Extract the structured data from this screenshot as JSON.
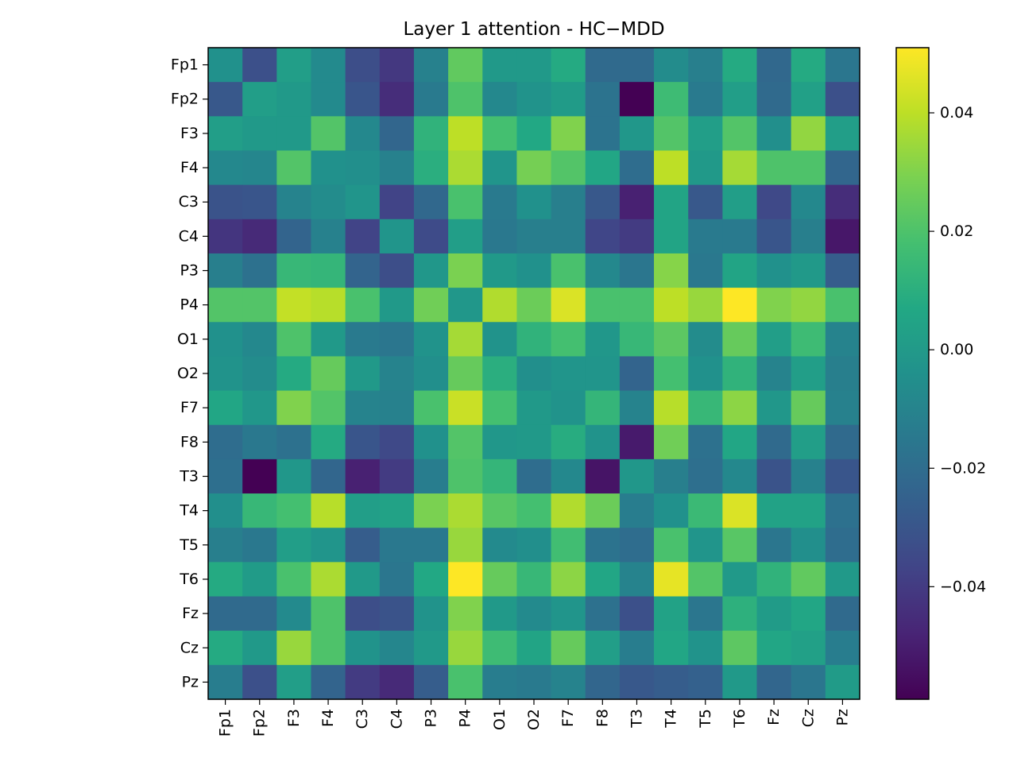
{
  "chart_data": {
    "type": "heatmap",
    "title": "Layer 1 attention - HC−MDD",
    "xlabel": "",
    "ylabel": "",
    "channels": [
      "Fp1",
      "Fp2",
      "F3",
      "F4",
      "C3",
      "C4",
      "P3",
      "P4",
      "O1",
      "O2",
      "F7",
      "F8",
      "T3",
      "T4",
      "T5",
      "T6",
      "Fz",
      "Cz",
      "Pz"
    ],
    "colormap": "viridis",
    "vmin": -0.059,
    "vmax": 0.051,
    "colorbar": {
      "ticks": [
        0.04,
        0.02,
        0.0,
        -0.02,
        -0.04
      ],
      "tick_labels": [
        "0.04",
        "0.02",
        "0.00",
        "−0.02",
        "−0.04"
      ]
    },
    "grid": false,
    "values": [
      [
        -0.004,
        -0.032,
        0.002,
        -0.007,
        -0.033,
        -0.041,
        -0.011,
        0.024,
        0.0,
        0.0,
        0.008,
        -0.021,
        -0.021,
        -0.006,
        -0.012,
        0.008,
        -0.022,
        0.008,
        -0.016
      ],
      [
        -0.029,
        0.002,
        0.0,
        -0.007,
        -0.03,
        -0.045,
        -0.014,
        0.02,
        -0.008,
        -0.003,
        0.001,
        -0.017,
        -0.059,
        0.016,
        -0.014,
        0.002,
        -0.021,
        0.003,
        -0.032
      ],
      [
        0.002,
        0.0,
        0.0,
        0.021,
        -0.008,
        -0.023,
        0.012,
        0.04,
        0.018,
        0.007,
        0.03,
        -0.017,
        -0.001,
        0.021,
        0.002,
        0.021,
        -0.005,
        0.033,
        0.002
      ],
      [
        -0.008,
        -0.009,
        0.021,
        -0.004,
        -0.005,
        -0.011,
        0.01,
        0.037,
        -0.002,
        0.028,
        0.021,
        0.006,
        -0.02,
        0.04,
        0.0,
        0.036,
        0.02,
        0.02,
        -0.023
      ],
      [
        -0.031,
        -0.03,
        -0.01,
        -0.006,
        -0.002,
        -0.037,
        -0.022,
        0.019,
        -0.014,
        -0.004,
        -0.012,
        -0.029,
        -0.049,
        0.005,
        -0.029,
        0.002,
        -0.035,
        -0.008,
        -0.045
      ],
      [
        -0.042,
        -0.046,
        -0.024,
        -0.011,
        -0.037,
        -0.002,
        -0.034,
        0.002,
        -0.015,
        -0.012,
        -0.012,
        -0.036,
        -0.04,
        0.005,
        -0.014,
        -0.014,
        -0.03,
        -0.012,
        -0.052
      ],
      [
        -0.012,
        -0.018,
        0.014,
        0.013,
        -0.024,
        -0.033,
        -0.001,
        0.029,
        0.0,
        -0.004,
        0.019,
        -0.008,
        -0.016,
        0.031,
        -0.015,
        0.005,
        -0.004,
        0.0,
        -0.027
      ],
      [
        0.021,
        0.021,
        0.041,
        0.039,
        0.019,
        0.0,
        0.027,
        -0.001,
        0.038,
        0.026,
        0.045,
        0.019,
        0.019,
        0.04,
        0.034,
        0.051,
        0.03,
        0.033,
        0.019
      ],
      [
        -0.004,
        -0.008,
        0.02,
        0.0,
        -0.014,
        -0.016,
        -0.003,
        0.036,
        -0.003,
        0.012,
        0.018,
        -0.001,
        0.014,
        0.023,
        -0.006,
        0.025,
        0.002,
        0.016,
        -0.01
      ],
      [
        -0.003,
        -0.006,
        0.008,
        0.025,
        0.0,
        -0.01,
        -0.005,
        0.025,
        0.01,
        -0.005,
        -0.002,
        -0.002,
        -0.024,
        0.018,
        -0.004,
        0.012,
        -0.01,
        0.002,
        -0.012
      ],
      [
        0.006,
        -0.001,
        0.03,
        0.021,
        -0.01,
        -0.011,
        0.019,
        0.042,
        0.018,
        0.0,
        -0.003,
        0.013,
        -0.01,
        0.039,
        0.014,
        0.032,
        -0.001,
        0.025,
        -0.011
      ],
      [
        -0.02,
        -0.015,
        -0.018,
        0.008,
        -0.03,
        -0.035,
        -0.004,
        0.021,
        -0.001,
        0.0,
        0.009,
        -0.003,
        -0.051,
        0.027,
        -0.018,
        0.006,
        -0.021,
        0.002,
        -0.021
      ],
      [
        -0.019,
        -0.059,
        -0.001,
        -0.023,
        -0.049,
        -0.04,
        -0.013,
        0.02,
        0.013,
        -0.02,
        -0.008,
        -0.053,
        -0.001,
        -0.012,
        -0.019,
        -0.008,
        -0.031,
        -0.011,
        -0.03
      ],
      [
        -0.005,
        0.014,
        0.018,
        0.039,
        0.002,
        0.004,
        0.029,
        0.037,
        0.022,
        0.018,
        0.038,
        0.026,
        -0.013,
        -0.004,
        0.015,
        0.045,
        0.004,
        0.004,
        -0.018
      ],
      [
        -0.012,
        -0.015,
        0.002,
        -0.002,
        -0.027,
        -0.015,
        -0.015,
        0.034,
        -0.007,
        -0.005,
        0.017,
        -0.017,
        -0.02,
        0.019,
        -0.002,
        0.022,
        -0.016,
        -0.005,
        -0.02
      ],
      [
        0.008,
        0.001,
        0.019,
        0.037,
        0.0,
        -0.016,
        0.007,
        0.051,
        0.025,
        0.014,
        0.032,
        0.006,
        -0.01,
        0.047,
        0.021,
        0.0,
        0.012,
        0.024,
        0.0
      ],
      [
        -0.021,
        -0.021,
        -0.007,
        0.02,
        -0.033,
        -0.031,
        -0.003,
        0.03,
        0.0,
        -0.007,
        -0.002,
        -0.018,
        -0.032,
        0.004,
        -0.016,
        0.011,
        0.001,
        0.006,
        -0.021
      ],
      [
        0.008,
        0.0,
        0.034,
        0.02,
        -0.003,
        -0.009,
        0.0,
        0.034,
        0.016,
        0.005,
        0.025,
        0.002,
        -0.013,
        0.006,
        -0.003,
        0.023,
        0.006,
        0.003,
        -0.013
      ],
      [
        -0.013,
        -0.032,
        0.002,
        -0.024,
        -0.04,
        -0.046,
        -0.027,
        0.019,
        -0.013,
        -0.014,
        -0.01,
        -0.023,
        -0.029,
        -0.027,
        -0.025,
        0.0,
        -0.023,
        -0.016,
        0.001
      ]
    ]
  }
}
